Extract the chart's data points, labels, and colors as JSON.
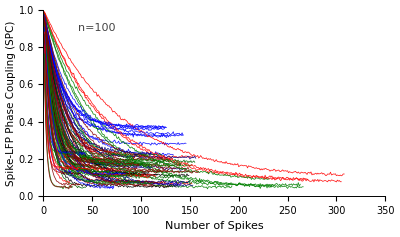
{
  "title": "",
  "xlabel": "Number of Spikes",
  "ylabel": "Spike-LFP Phase Coupling (SPC)",
  "annotation": "n=100",
  "xlim": [
    0,
    350
  ],
  "ylim": [
    0,
    1.0
  ],
  "xticks": [
    0,
    50,
    100,
    150,
    200,
    250,
    300,
    350
  ],
  "yticks": [
    0,
    0.2,
    0.4,
    0.6,
    0.8,
    1.0
  ],
  "background_color": "#ffffff",
  "n_curves": 100,
  "seed": 7,
  "colors": [
    "blue",
    "red",
    "green",
    "black",
    "darkred",
    "darkgreen"
  ],
  "noise_scale": 0.004,
  "linewidth": 0.55,
  "alpha": 0.9,
  "figsize": [
    4.0,
    2.37
  ],
  "dpi": 100
}
